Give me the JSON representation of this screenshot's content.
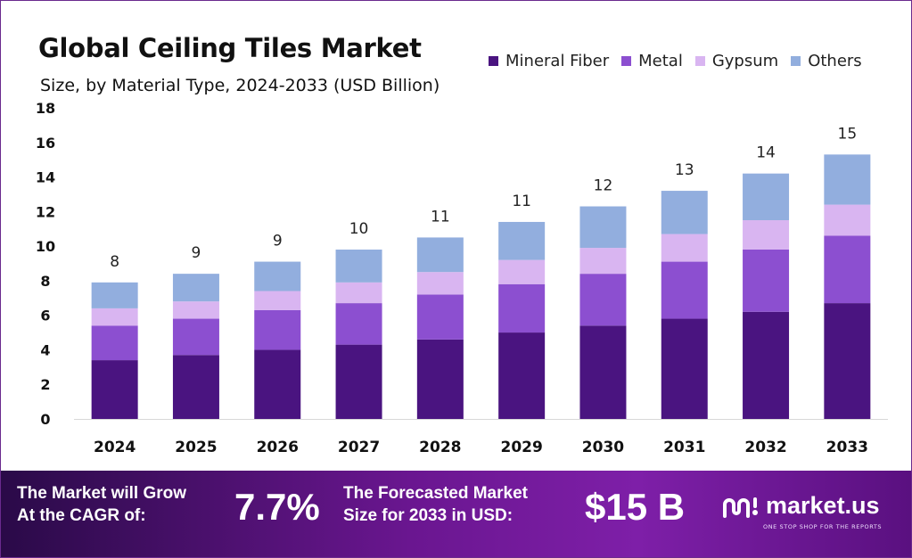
{
  "title": "Global Ceiling Tiles Market",
  "subtitle": "Size, by Material Type, 2024-2033 (USD Billion)",
  "chart_data": {
    "type": "bar",
    "stacked": true,
    "categories": [
      "2024",
      "2025",
      "2026",
      "2027",
      "2028",
      "2029",
      "2030",
      "2031",
      "2032",
      "2033"
    ],
    "series": [
      {
        "name": "Mineral Fiber",
        "color": "#4a1480",
        "values": [
          3.4,
          3.7,
          4.0,
          4.3,
          4.6,
          5.0,
          5.4,
          5.8,
          6.2,
          6.7
        ]
      },
      {
        "name": "Metal",
        "color": "#8c4fd0",
        "values": [
          2.0,
          2.1,
          2.3,
          2.4,
          2.6,
          2.8,
          3.0,
          3.3,
          3.6,
          3.9
        ]
      },
      {
        "name": "Gypsum",
        "color": "#d9b5f1",
        "values": [
          1.0,
          1.0,
          1.1,
          1.2,
          1.3,
          1.4,
          1.5,
          1.6,
          1.7,
          1.8
        ]
      },
      {
        "name": "Others",
        "color": "#92aede",
        "values": [
          1.5,
          1.6,
          1.7,
          1.9,
          2.0,
          2.2,
          2.4,
          2.5,
          2.7,
          2.9
        ]
      }
    ],
    "totals": [
      "8",
      "9",
      "9",
      "10",
      "11",
      "11",
      "12",
      "13",
      "14",
      "15"
    ],
    "ylim": [
      0,
      18
    ],
    "yticks": [
      "0",
      "2",
      "4",
      "6",
      "8",
      "10",
      "12",
      "14",
      "16",
      "18"
    ],
    "grid": false,
    "legend_position": "top-right",
    "xlabel": "",
    "ylabel": ""
  },
  "banner": {
    "cagr_label_line1": "The Market will Grow",
    "cagr_label_line2": "At the CAGR of:",
    "cagr_value": "7.7%",
    "forecast_label_line1": "The Forecasted Market",
    "forecast_label_line2": "Size for 2033 in USD:",
    "forecast_value": "$15 B",
    "brand_name": "market.us",
    "brand_tagline": "ONE STOP SHOP FOR THE REPORTS",
    "brand_icon": "market-us-logo-icon"
  }
}
